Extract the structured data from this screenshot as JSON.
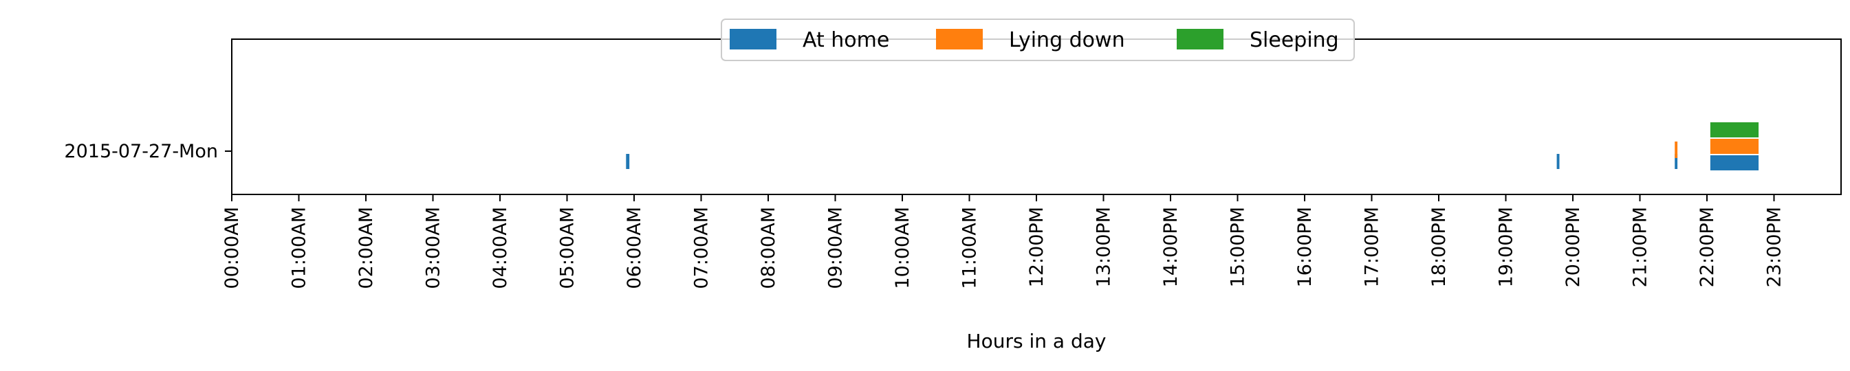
{
  "chart_data": {
    "type": "bar",
    "orientation": "horizontal-timeline",
    "xlabel": "Hours in a day",
    "ylabel": "",
    "xlim": [
      0,
      24
    ],
    "x_ticks": [
      "00:00AM",
      "01:00AM",
      "02:00AM",
      "03:00AM",
      "04:00AM",
      "05:00AM",
      "06:00AM",
      "07:00AM",
      "08:00AM",
      "09:00AM",
      "10:00AM",
      "11:00AM",
      "12:00PM",
      "13:00PM",
      "14:00PM",
      "15:00PM",
      "16:00PM",
      "17:00PM",
      "18:00PM",
      "19:00PM",
      "20:00PM",
      "21:00PM",
      "22:00PM",
      "23:00PM"
    ],
    "categories": [
      "2015-07-27-Mon"
    ],
    "grid": false,
    "legend_position": "top-center",
    "series": [
      {
        "name": "At home",
        "color": "#1f77b4",
        "intervals": [
          [
            5.88,
            5.93
          ],
          [
            19.76,
            19.8
          ],
          [
            21.52,
            21.56
          ],
          [
            22.05,
            22.77
          ]
        ]
      },
      {
        "name": "Lying down",
        "color": "#ff7f0e",
        "intervals": [
          [
            21.52,
            21.56
          ],
          [
            22.05,
            22.77
          ]
        ]
      },
      {
        "name": "Sleeping",
        "color": "#2ca02c",
        "intervals": [
          [
            22.05,
            22.77
          ]
        ]
      }
    ]
  }
}
